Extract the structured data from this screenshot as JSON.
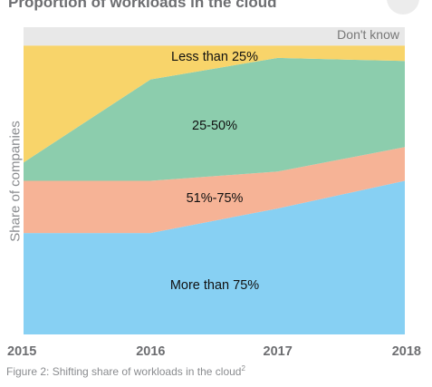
{
  "title": "Proportion of workloads in the cloud",
  "caption": {
    "text": "Figure 2: Shifting share of workloads in the cloud",
    "footnote": "2"
  },
  "chart_data": {
    "type": "area",
    "stacked": true,
    "normalized": true,
    "x": [
      "2015",
      "2016",
      "2017",
      "2018"
    ],
    "ylabel": "Share of companies",
    "ylim": [
      0,
      100
    ],
    "grid": false,
    "legend": "none (labels placed inside areas)",
    "series": [
      {
        "name": "More than 75%",
        "values": [
          33,
          33,
          41,
          50
        ],
        "color": "#87d0f3"
      },
      {
        "name": "51%-75%",
        "values": [
          17,
          17,
          12,
          11
        ],
        "color": "#f6b396"
      },
      {
        "name": "25-50%",
        "values": [
          6,
          33,
          37,
          28
        ],
        "color": "#8ccdad"
      },
      {
        "name": "Less than 25%",
        "values": [
          38,
          11,
          4,
          5
        ],
        "color": "#f8d46a"
      },
      {
        "name": "Don't know",
        "values": [
          6,
          6,
          6,
          6
        ],
        "color": "#e8e8e8"
      }
    ]
  }
}
